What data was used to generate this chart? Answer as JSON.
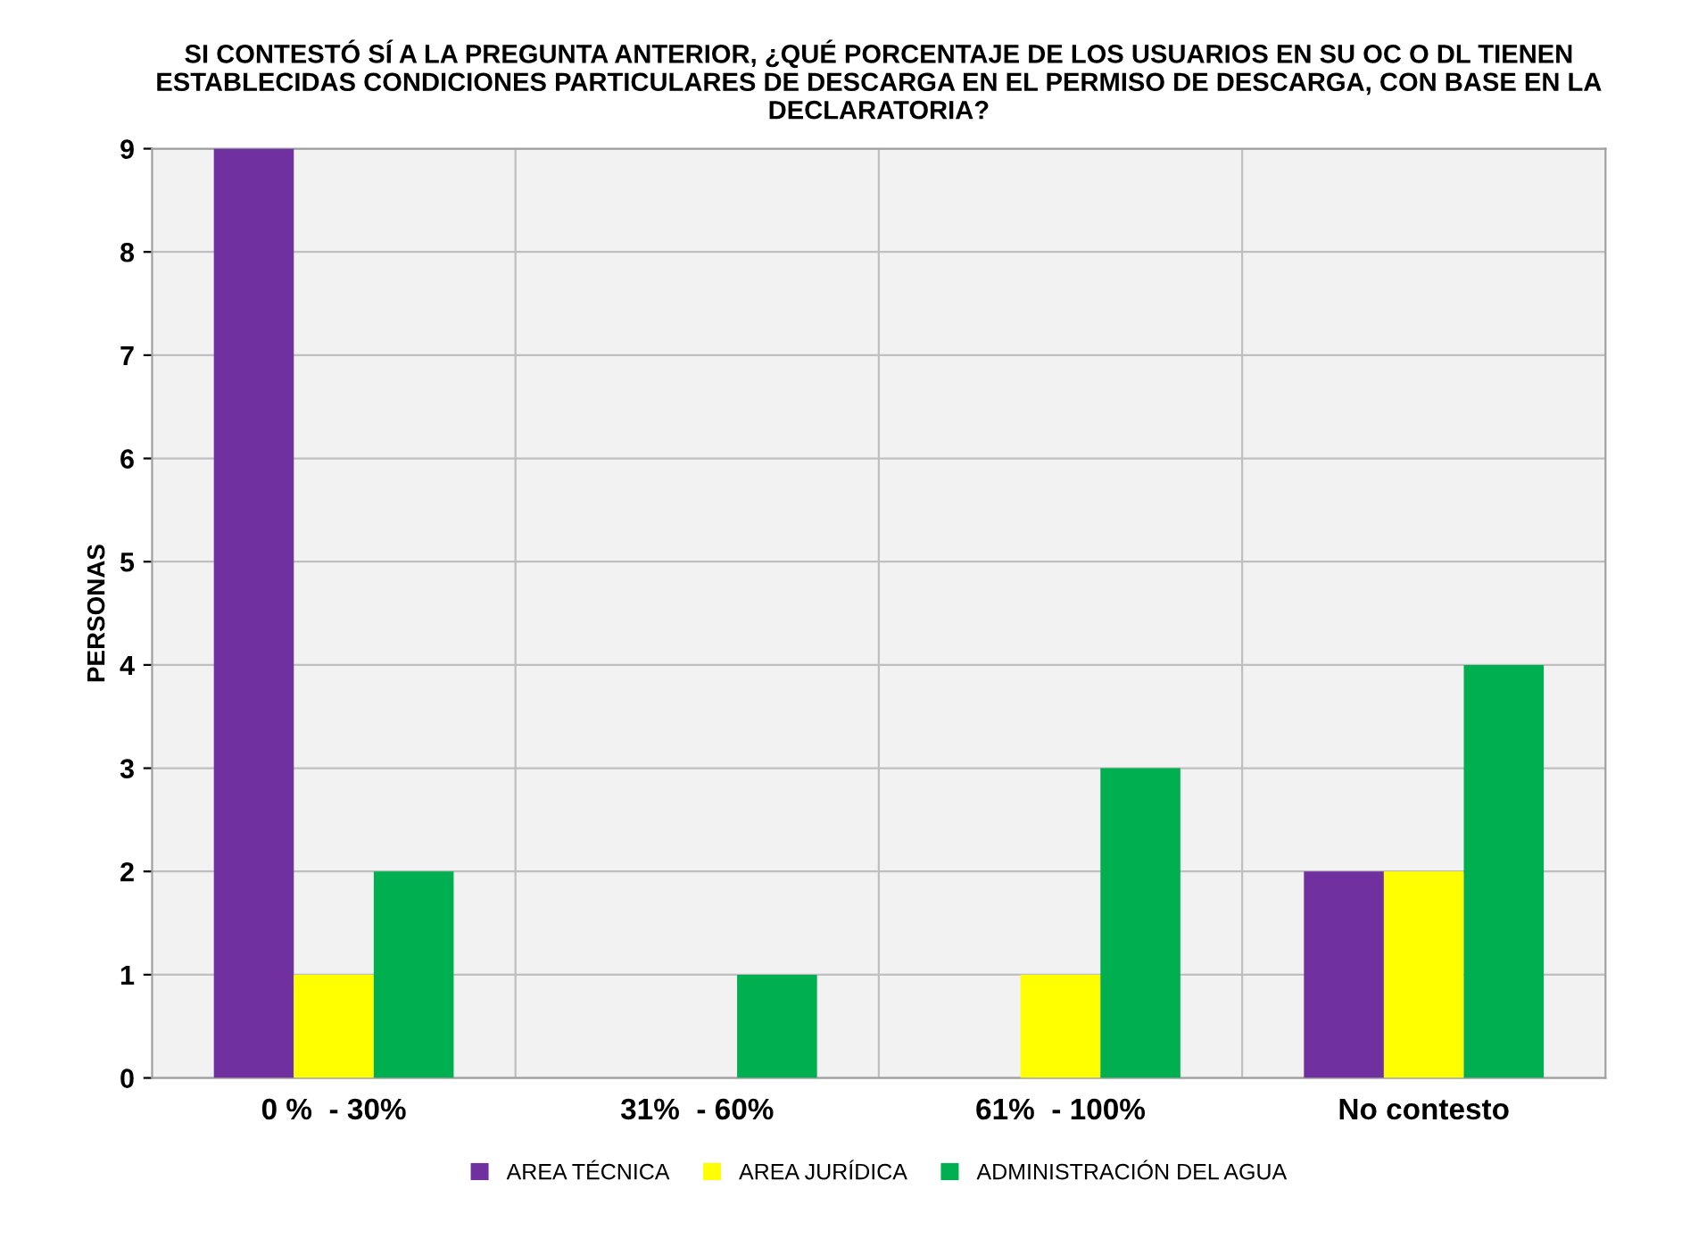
{
  "chart_data": {
    "type": "bar",
    "title": "SI CONTESTÓ SÍ A LA PREGUNTA ANTERIOR, ¿QUÉ PORCENTAJE DE LOS USUARIOS EN SU OC O DL TIENEN\nESTABLECIDAS CONDICIONES PARTICULARES DE DESCARGA EN EL PERMISO DE DESCARGA, CON BASE EN LA\nDECLARATORIA?",
    "ylabel": "PERSONAS",
    "categories": [
      "0 %  - 30%",
      "31%  - 60%",
      "61%  - 100%",
      "No contesto"
    ],
    "series": [
      {
        "name": "AREA TÉCNICA",
        "color": "#7030a0",
        "values": [
          9,
          0,
          0,
          2
        ]
      },
      {
        "name": "AREA JURÍDICA",
        "color": "#ffff00",
        "values": [
          1,
          0,
          1,
          2
        ]
      },
      {
        "name": "ADMINISTRACIÓN DEL AGUA",
        "color": "#00b050",
        "values": [
          2,
          1,
          3,
          4
        ]
      }
    ],
    "ylim": [
      0,
      9
    ],
    "yticks": [
      0,
      1,
      2,
      3,
      4,
      5,
      6,
      7,
      8,
      9
    ],
    "grid": true,
    "legend": "bottom"
  }
}
